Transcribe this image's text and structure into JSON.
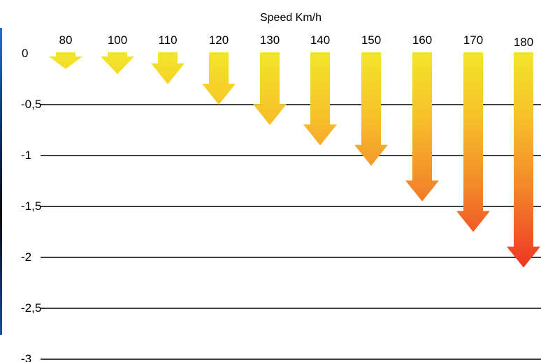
{
  "chart_data": {
    "type": "bar",
    "title": "Speed Km/h",
    "categories": [
      "80",
      "100",
      "110",
      "120",
      "130",
      "140",
      "150",
      "160",
      "170",
      "180"
    ],
    "values": [
      -0.15,
      -0.2,
      -0.3,
      -0.5,
      -0.7,
      -0.9,
      -1.1,
      -1.45,
      -1.75,
      -2.1
    ],
    "y_tick_labels": [
      "0",
      "-0,5",
      "-1",
      "-1,5",
      "-2",
      "-2,5",
      "-3"
    ],
    "ylim": [
      -3,
      0
    ],
    "grid": true,
    "colors": {
      "low": "#f3e62a",
      "high": "#ee3224",
      "gridline": "#000000"
    }
  }
}
